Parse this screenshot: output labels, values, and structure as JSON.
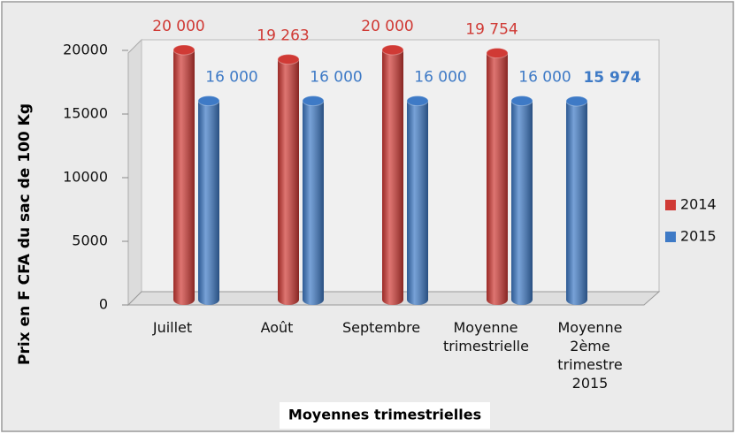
{
  "chart_data": {
    "type": "bar",
    "xlabel": "Moyennes trimestrielles",
    "ylabel": "Prix en F CFA du sac de 100 Kg",
    "categories": [
      "Juillet",
      "Août",
      "Septembre",
      "Moyenne trimestrielle",
      "Moyenne 2ème trimestre 2015"
    ],
    "series": [
      {
        "name": "2014",
        "color": "#d03a35",
        "values": [
          20000,
          19263,
          20000,
          19754,
          null
        ],
        "value_labels": [
          "20 000",
          "19 263",
          "20 000",
          "19 754",
          null
        ]
      },
      {
        "name": "2015",
        "color": "#3e7ac6",
        "values": [
          16000,
          16000,
          16000,
          16000,
          15974
        ],
        "value_labels": [
          "16 000",
          "16 000",
          "16 000",
          "16 000",
          "15 974"
        ]
      }
    ],
    "ylim": [
      0,
      20000
    ],
    "yticks": [
      0,
      5000,
      10000,
      15000,
      20000
    ],
    "grid": false,
    "legend": "right"
  }
}
